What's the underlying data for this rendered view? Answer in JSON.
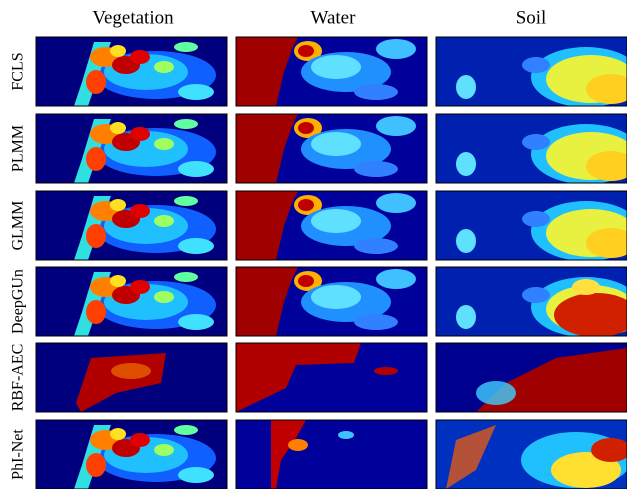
{
  "column_headers": [
    "Vegetation",
    "Water",
    "Soil"
  ],
  "row_labels": [
    "FCLS",
    "PLMM",
    "GLMM",
    "DeepGUn",
    "RBF-AEC",
    "PhI-Net"
  ]
}
